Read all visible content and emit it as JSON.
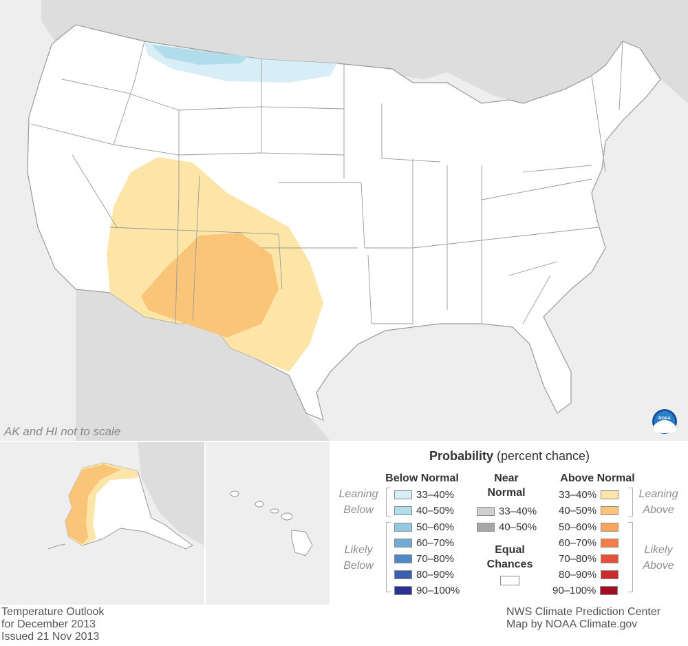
{
  "map_note": "AK and HI not to scale",
  "legend": {
    "title_bold": "Probability",
    "title_rest": " (percent chance)",
    "below_header": "Below Normal",
    "near_header": "Near Normal",
    "above_header": "Above Normal",
    "equal_chances": "Equal Chances",
    "leaning_below": "Leaning Below",
    "likely_below": "Likely Below",
    "leaning_above": "Leaning Above",
    "likely_above": "Likely Above",
    "below": [
      {
        "range": "33–40%",
        "color": "#d8eef6"
      },
      {
        "range": "40–50%",
        "color": "#b1dcec"
      },
      {
        "range": "50–60%",
        "color": "#94c8df"
      },
      {
        "range": "60–70%",
        "color": "#74a9d3"
      },
      {
        "range": "70–80%",
        "color": "#5087c4"
      },
      {
        "range": "80–90%",
        "color": "#3a5fb0"
      },
      {
        "range": "90–100%",
        "color": "#2b3296"
      }
    ],
    "near": [
      {
        "range": "33–40%",
        "color": "#cfcfcf"
      },
      {
        "range": "40–50%",
        "color": "#a8a8a8"
      }
    ],
    "above": [
      {
        "range": "33–40%",
        "color": "#fde5a8"
      },
      {
        "range": "40–50%",
        "color": "#fbc579"
      },
      {
        "range": "50–60%",
        "color": "#f9a55e"
      },
      {
        "range": "60–70%",
        "color": "#f47d4a"
      },
      {
        "range": "70–80%",
        "color": "#e6503a"
      },
      {
        "range": "80–90%",
        "color": "#cc2a2d"
      },
      {
        "range": "90–100%",
        "color": "#a30d22"
      }
    ],
    "equal_color": "#ffffff"
  },
  "footer_left": [
    "Temperature Outlook",
    "for December 2013",
    "Issued 21 Nov 2013"
  ],
  "footer_right": [
    "NWS Climate Prediction Center",
    "Map by NOAA Climate.gov"
  ],
  "logo_text": "NOAA",
  "colors": {
    "ocean": "#eeeeee",
    "land_outside": "#dddddd",
    "border": "#999999"
  }
}
